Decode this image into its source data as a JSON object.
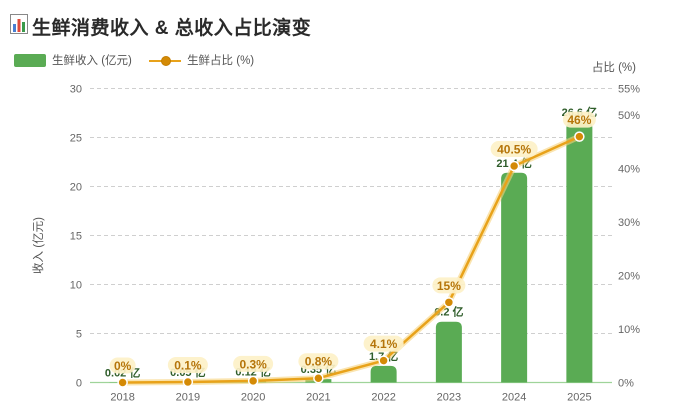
{
  "title": "生鲜消费收入 & 总收入占比演变",
  "legend": {
    "bar_label": "生鲜收入 (亿元)",
    "line_label": "生鲜占比 (%)"
  },
  "colors": {
    "bar": "#5aab54",
    "line": "#e8a21a",
    "marker": "#d48a06",
    "pct_label_bg": "#fdf1c8",
    "pct_label_text": "#b5750a",
    "bar_label_text": "#2f5d2a"
  },
  "chart_data": {
    "type": "bar",
    "categories": [
      "2018",
      "2019",
      "2020",
      "2021",
      "2022",
      "2023",
      "2024",
      "2025"
    ],
    "series": [
      {
        "name": "生鲜收入 (亿元)",
        "type": "bar",
        "axis": "left",
        "values": [
          0.02,
          0.05,
          0.12,
          0.35,
          1.7,
          6.2,
          21.4,
          26.6
        ],
        "labels": [
          "0.02 亿",
          "0.05 亿",
          "0.12 亿",
          "0.35 亿",
          "1.7 亿",
          "6.2 亿",
          "21.4 亿",
          "26.6 亿"
        ]
      },
      {
        "name": "生鲜占比 (%)",
        "type": "line",
        "axis": "right",
        "values": [
          0,
          0.1,
          0.3,
          0.8,
          4.1,
          15,
          40.5,
          46
        ],
        "labels": [
          "0%",
          "0.1%",
          "0.3%",
          "0.8%",
          "4.1%",
          "15%",
          "40.5%",
          "46%"
        ]
      }
    ],
    "ylabel": "收入 (亿元)",
    "y2label": "占比 (%)",
    "ylim": [
      0,
      30
    ],
    "y2lim": [
      0,
      55
    ],
    "yticks": [
      "0",
      "5",
      "10",
      "15",
      "20",
      "25",
      "30"
    ],
    "y2ticks": [
      "0%",
      "10%",
      "20%",
      "30%",
      "40%",
      "50%",
      "55%"
    ],
    "grid": true,
    "legend_position": "top-left"
  }
}
